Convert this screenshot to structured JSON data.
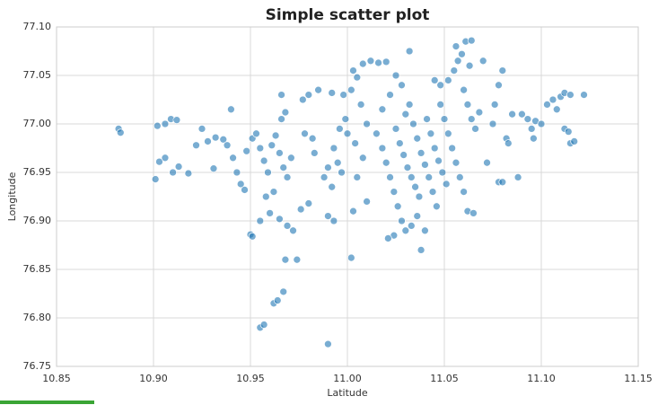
{
  "chart_data": {
    "type": "scatter",
    "title": "Simple scatter plot",
    "x_label": "Latitude",
    "y_label": "Longitude",
    "color": "#1f77b4",
    "grid": true,
    "xlim": [
      10.85,
      11.15
    ],
    "xticks": [
      10.85,
      {
        "value": 10.9,
        "label": "10.90"
      },
      10.95,
      {
        "value": 11,
        "label": "11.00"
      },
      11.05,
      {
        "value": 11.1,
        "label": "11.10"
      },
      11.15
    ],
    "ylim": [
      76.75,
      77.1
    ],
    "yticks": [
      76.75,
      {
        "value": 76.8,
        "label": "76.80"
      },
      76.85,
      {
        "value": 76.9,
        "label": "76.90"
      },
      76.95,
      {
        "value": 77,
        "label": "77.00"
      },
      77.05,
      {
        "value": 77.1,
        "label": "77.10"
      }
    ],
    "x": [
      10.882,
      10.883,
      10.901,
      10.903,
      10.906,
      10.902,
      10.906,
      10.909,
      10.912,
      10.91,
      10.913,
      10.918,
      10.922,
      10.925,
      10.928,
      10.932,
      10.936,
      10.931,
      10.94,
      10.938,
      10.941,
      10.943,
      10.945,
      10.947,
      10.948,
      10.951,
      10.953,
      10.955,
      10.957,
      10.959,
      10.961,
      10.963,
      10.965,
      10.967,
      10.969,
      10.971,
      10.962,
      10.958,
      10.96,
      10.955,
      10.965,
      10.969,
      10.972,
      10.95,
      10.951,
      10.955,
      10.957,
      10.962,
      10.964,
      10.967,
      10.968,
      10.974,
      10.99,
      11.002,
      10.966,
      10.968,
      10.966,
      10.976,
      10.98,
      10.978,
      10.982,
      10.977,
      10.98,
      10.985,
      10.983,
      10.988,
      10.99,
      10.992,
      10.995,
      10.997,
      10.993,
      10.996,
      10.999,
      11.0,
      11.002,
      10.998,
      10.992,
      11.003,
      11.005,
      11.008,
      11.012,
      11.016,
      11.02,
      11.007,
      11.01,
      11.004,
      11.008,
      11.005,
      11.01,
      11.003,
      10.99,
      10.993,
      11.015,
      11.018,
      11.02,
      11.022,
      11.024,
      11.026,
      11.028,
      11.03,
      11.024,
      11.021,
      11.033,
      11.036,
      11.04,
      11.038,
      11.025,
      11.027,
      11.029,
      11.031,
      11.033,
      11.035,
      11.037,
      11.03,
      11.032,
      11.034,
      11.036,
      11.038,
      11.04,
      11.042,
      11.044,
      11.046,
      11.041,
      11.043,
      11.045,
      11.047,
      11.049,
      11.051,
      11.048,
      11.05,
      11.052,
      11.054,
      11.056,
      11.058,
      11.06,
      11.062,
      11.065,
      11.032,
      11.025,
      11.028,
      11.022,
      11.018,
      11.045,
      11.048,
      11.052,
      11.055,
      11.057,
      11.059,
      11.061,
      11.064,
      11.056,
      11.06,
      11.062,
      11.064,
      11.066,
      11.068,
      11.063,
      11.07,
      11.072,
      11.075,
      11.076,
      11.078,
      11.08,
      11.082,
      11.083,
      11.078,
      11.08,
      11.088,
      11.085,
      11.09,
      11.093,
      11.095,
      11.097,
      11.096,
      11.1,
      11.103,
      11.106,
      11.108,
      11.11,
      11.112,
      11.115,
      11.122,
      11.112,
      11.114,
      11.115,
      11.117
    ],
    "values": [
      76.995,
      76.991,
      76.943,
      76.961,
      76.965,
      76.998,
      77.0,
      77.005,
      77.004,
      76.95,
      76.956,
      76.949,
      76.978,
      76.995,
      76.982,
      76.986,
      76.984,
      76.954,
      77.015,
      76.978,
      76.965,
      76.95,
      76.938,
      76.932,
      76.972,
      76.985,
      76.99,
      76.975,
      76.962,
      76.95,
      76.978,
      76.988,
      76.97,
      76.955,
      76.945,
      76.965,
      76.93,
      76.925,
      76.908,
      76.9,
      76.902,
      76.895,
      76.89,
      76.886,
      76.884,
      76.79,
      76.793,
      76.815,
      76.818,
      76.827,
      76.86,
      76.86,
      76.773,
      76.862,
      77.005,
      77.012,
      77.03,
      76.912,
      76.918,
      76.99,
      76.985,
      77.025,
      77.03,
      77.035,
      76.97,
      76.945,
      76.955,
      76.935,
      76.96,
      76.95,
      76.975,
      76.995,
      77.005,
      76.99,
      77.035,
      77.03,
      77.032,
      77.055,
      77.048,
      77.062,
      77.065,
      77.063,
      77.064,
      77.02,
      77.0,
      76.98,
      76.965,
      76.945,
      76.92,
      76.91,
      76.905,
      76.9,
      76.99,
      76.975,
      76.96,
      76.945,
      76.93,
      76.915,
      76.9,
      76.89,
      76.885,
      76.882,
      76.895,
      76.905,
      76.89,
      76.87,
      76.995,
      76.98,
      76.968,
      76.955,
      76.945,
      76.935,
      76.925,
      77.01,
      77.02,
      77.0,
      76.985,
      76.97,
      76.958,
      76.945,
      76.93,
      76.915,
      77.005,
      76.99,
      76.975,
      76.962,
      76.95,
      76.938,
      77.02,
      77.005,
      76.99,
      76.975,
      76.96,
      76.945,
      76.93,
      76.91,
      76.908,
      77.075,
      77.05,
      77.04,
      77.03,
      77.015,
      77.045,
      77.04,
      77.045,
      77.055,
      77.065,
      77.072,
      77.085,
      77.086,
      77.08,
      77.035,
      77.02,
      77.005,
      76.995,
      77.012,
      77.06,
      77.065,
      76.96,
      77.0,
      77.02,
      77.04,
      77.055,
      76.985,
      76.98,
      76.94,
      76.94,
      76.945,
      77.01,
      77.01,
      77.005,
      76.995,
      77.003,
      76.985,
      77.0,
      77.02,
      77.025,
      77.015,
      77.028,
      77.032,
      77.03,
      77.03,
      76.995,
      76.992,
      76.98,
      76.982
    ]
  }
}
